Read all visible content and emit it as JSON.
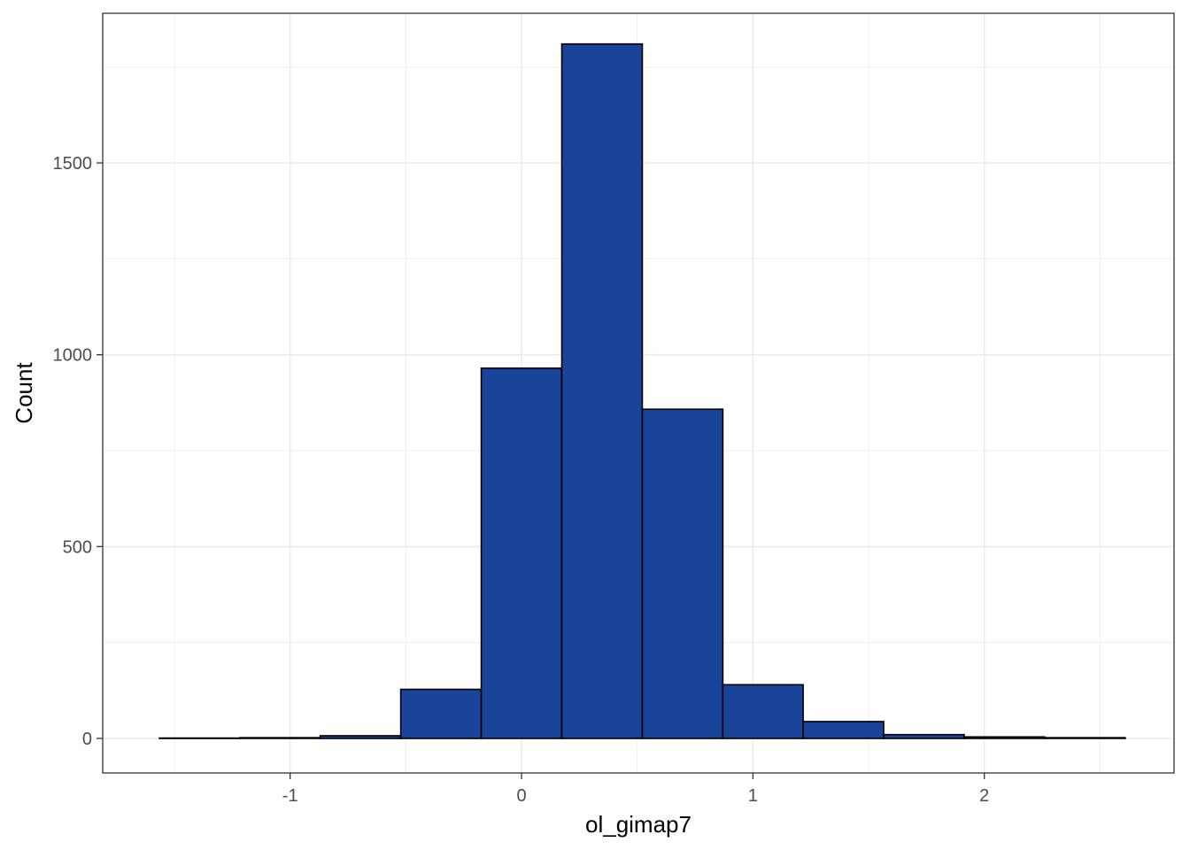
{
  "chart_data": {
    "type": "bar",
    "subtype": "histogram",
    "title": "",
    "xlabel": "ol_gimap7",
    "ylabel": "Count",
    "xlim": [
      -1.81,
      2.82
    ],
    "ylim": [
      -90,
      1890
    ],
    "x_ticks": [
      -1,
      0,
      1,
      2
    ],
    "x_ticks_minor": [
      -1.5,
      -0.5,
      0.5,
      1.5,
      2.5
    ],
    "y_ticks": [
      0,
      500,
      1000,
      1500
    ],
    "y_ticks_minor": [
      250,
      750,
      1250,
      1750
    ],
    "x_tick_labels": [
      "-1",
      "0",
      "1",
      "2"
    ],
    "y_tick_labels": [
      "0",
      "500",
      "1000",
      "1500"
    ],
    "bin_edges": [
      -1.565,
      -1.217,
      -0.87,
      -0.522,
      -0.174,
      0.174,
      0.522,
      0.87,
      1.217,
      1.565,
      1.913,
      2.261,
      2.609
    ],
    "values": [
      1,
      2,
      7,
      128,
      965,
      1810,
      858,
      140,
      44,
      10,
      4,
      2
    ],
    "grid": true,
    "legend": "none",
    "colors": {
      "bar_fill": "#1A449A",
      "bar_stroke": "#000000",
      "grid": "#EBEBEB",
      "panel_border": "#333333"
    }
  }
}
